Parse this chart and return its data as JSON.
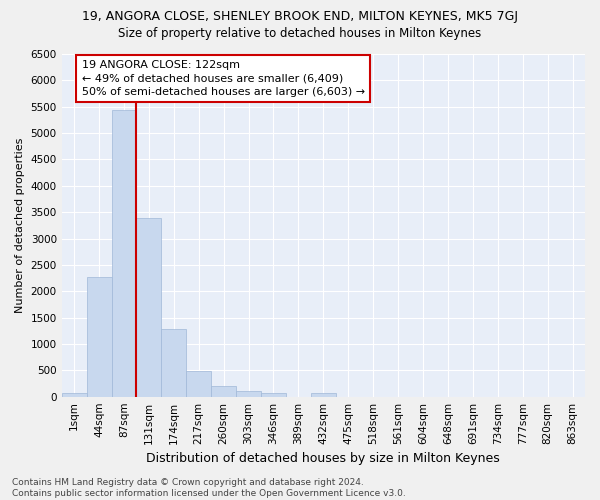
{
  "title": "19, ANGORA CLOSE, SHENLEY BROOK END, MILTON KEYNES, MK5 7GJ",
  "subtitle": "Size of property relative to detached houses in Milton Keynes",
  "xlabel": "Distribution of detached houses by size in Milton Keynes",
  "ylabel": "Number of detached properties",
  "bar_color": "#c8d8ee",
  "bar_edge_color": "#a0b8d8",
  "background_color": "#e8eef8",
  "grid_color": "#ffffff",
  "categories": [
    "1sqm",
    "44sqm",
    "87sqm",
    "131sqm",
    "174sqm",
    "217sqm",
    "260sqm",
    "303sqm",
    "346sqm",
    "389sqm",
    "432sqm",
    "475sqm",
    "518sqm",
    "561sqm",
    "604sqm",
    "648sqm",
    "691sqm",
    "734sqm",
    "777sqm",
    "820sqm",
    "863sqm"
  ],
  "values": [
    75,
    2270,
    5430,
    3380,
    1280,
    480,
    210,
    100,
    70,
    0,
    70,
    0,
    0,
    0,
    0,
    0,
    0,
    0,
    0,
    0,
    0
  ],
  "property_line_color": "#cc0000",
  "annotation_text": "19 ANGORA CLOSE: 122sqm\n← 49% of detached houses are smaller (6,409)\n50% of semi-detached houses are larger (6,603) →",
  "annotation_box_color": "#ffffff",
  "annotation_box_edge_color": "#cc0000",
  "ylim": [
    0,
    6500
  ],
  "yticks": [
    0,
    500,
    1000,
    1500,
    2000,
    2500,
    3000,
    3500,
    4000,
    4500,
    5000,
    5500,
    6000,
    6500
  ],
  "footer_text": "Contains HM Land Registry data © Crown copyright and database right 2024.\nContains public sector information licensed under the Open Government Licence v3.0.",
  "title_fontsize": 9,
  "subtitle_fontsize": 8.5,
  "xlabel_fontsize": 9,
  "ylabel_fontsize": 8,
  "tick_fontsize": 7.5,
  "annotation_fontsize": 8,
  "footer_fontsize": 6.5
}
